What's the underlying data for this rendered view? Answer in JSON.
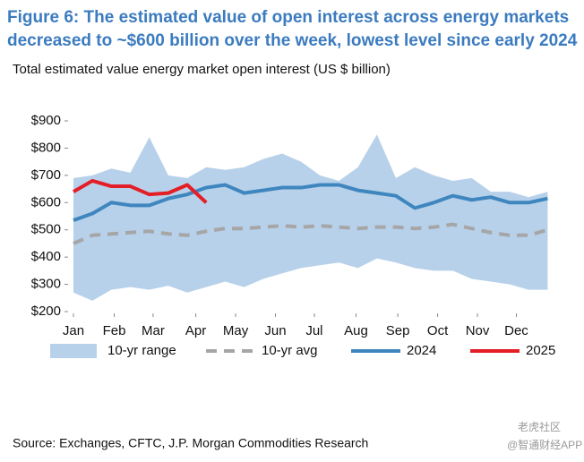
{
  "chart_data": {
    "type": "range-line",
    "title": "Figure 6: The estimated value of open interest across energy markets",
    "title_line2": "decreased to ~$600 billion over the week, lowest level since early 2024",
    "subtitle": "Total estimated value energy market open interest (US $ billion)",
    "source": "Source: Exchanges, CFTC, J.P. Morgan Commodities Research",
    "watermark": "老虎社区",
    "watermark2": "@智通财经APP",
    "x": [
      1,
      3,
      5,
      7,
      9,
      11,
      13,
      15,
      17,
      19,
      21,
      23,
      25,
      27,
      29,
      31,
      33,
      35,
      37,
      39,
      41,
      43,
      45,
      47,
      49,
      51
    ],
    "xlim": [
      1,
      52
    ],
    "xticks": [
      {
        "value": 1,
        "label": "Jan"
      },
      {
        "value": 5.3,
        "label": "Feb"
      },
      {
        "value": 9.4,
        "label": "Mar"
      },
      {
        "value": 13.9,
        "label": "Apr"
      },
      {
        "value": 18.1,
        "label": "May"
      },
      {
        "value": 22.3,
        "label": "Jun"
      },
      {
        "value": 26.4,
        "label": "Jul"
      },
      {
        "value": 30.8,
        "label": "Aug"
      },
      {
        "value": 35.2,
        "label": "Sep"
      },
      {
        "value": 39.4,
        "label": "Oct"
      },
      {
        "value": 43.6,
        "label": "Nov"
      },
      {
        "value": 47.7,
        "label": "Dec"
      }
    ],
    "ylim": [
      200,
      900
    ],
    "yticks": [
      {
        "value": 200,
        "label": "$200"
      },
      {
        "value": 300,
        "label": "$300"
      },
      {
        "value": 400,
        "label": "$400"
      },
      {
        "value": 500,
        "label": "$500"
      },
      {
        "value": 600,
        "label": "$600"
      },
      {
        "value": 700,
        "label": "$700"
      },
      {
        "value": 800,
        "label": "$800"
      },
      {
        "value": 900,
        "label": "$900"
      }
    ],
    "range": {
      "name": "10-yr range",
      "color": "#b7d1ea",
      "upper": [
        690,
        700,
        725,
        710,
        840,
        700,
        690,
        730,
        720,
        730,
        760,
        780,
        750,
        700,
        680,
        730,
        850,
        690,
        730,
        700,
        680,
        690,
        640,
        640,
        620,
        640
      ],
      "lower": [
        270,
        240,
        280,
        290,
        280,
        295,
        270,
        290,
        310,
        290,
        320,
        340,
        360,
        370,
        380,
        360,
        395,
        380,
        360,
        350,
        350,
        320,
        310,
        300,
        280,
        280
      ]
    },
    "series": [
      {
        "name": "10-yr avg",
        "color": "#a6a6a6",
        "dash": true,
        "values": [
          450,
          480,
          485,
          490,
          495,
          485,
          480,
          495,
          505,
          505,
          510,
          515,
          510,
          515,
          510,
          505,
          510,
          510,
          505,
          510,
          520,
          505,
          490,
          480,
          480,
          500
        ]
      },
      {
        "name": "2024",
        "color": "#3f86bf",
        "values": [
          535,
          560,
          600,
          590,
          590,
          615,
          630,
          655,
          665,
          635,
          645,
          655,
          655,
          665,
          665,
          645,
          635,
          625,
          580,
          600,
          625,
          610,
          620,
          600,
          600,
          615
        ]
      },
      {
        "name": "2025",
        "color": "#e41e26",
        "values": [
          640,
          680,
          660,
          660,
          630,
          635,
          665,
          600,
          null,
          null,
          null,
          null,
          null,
          null,
          null,
          null,
          null,
          null,
          null,
          null,
          null,
          null,
          null,
          null,
          null,
          null
        ]
      }
    ]
  }
}
